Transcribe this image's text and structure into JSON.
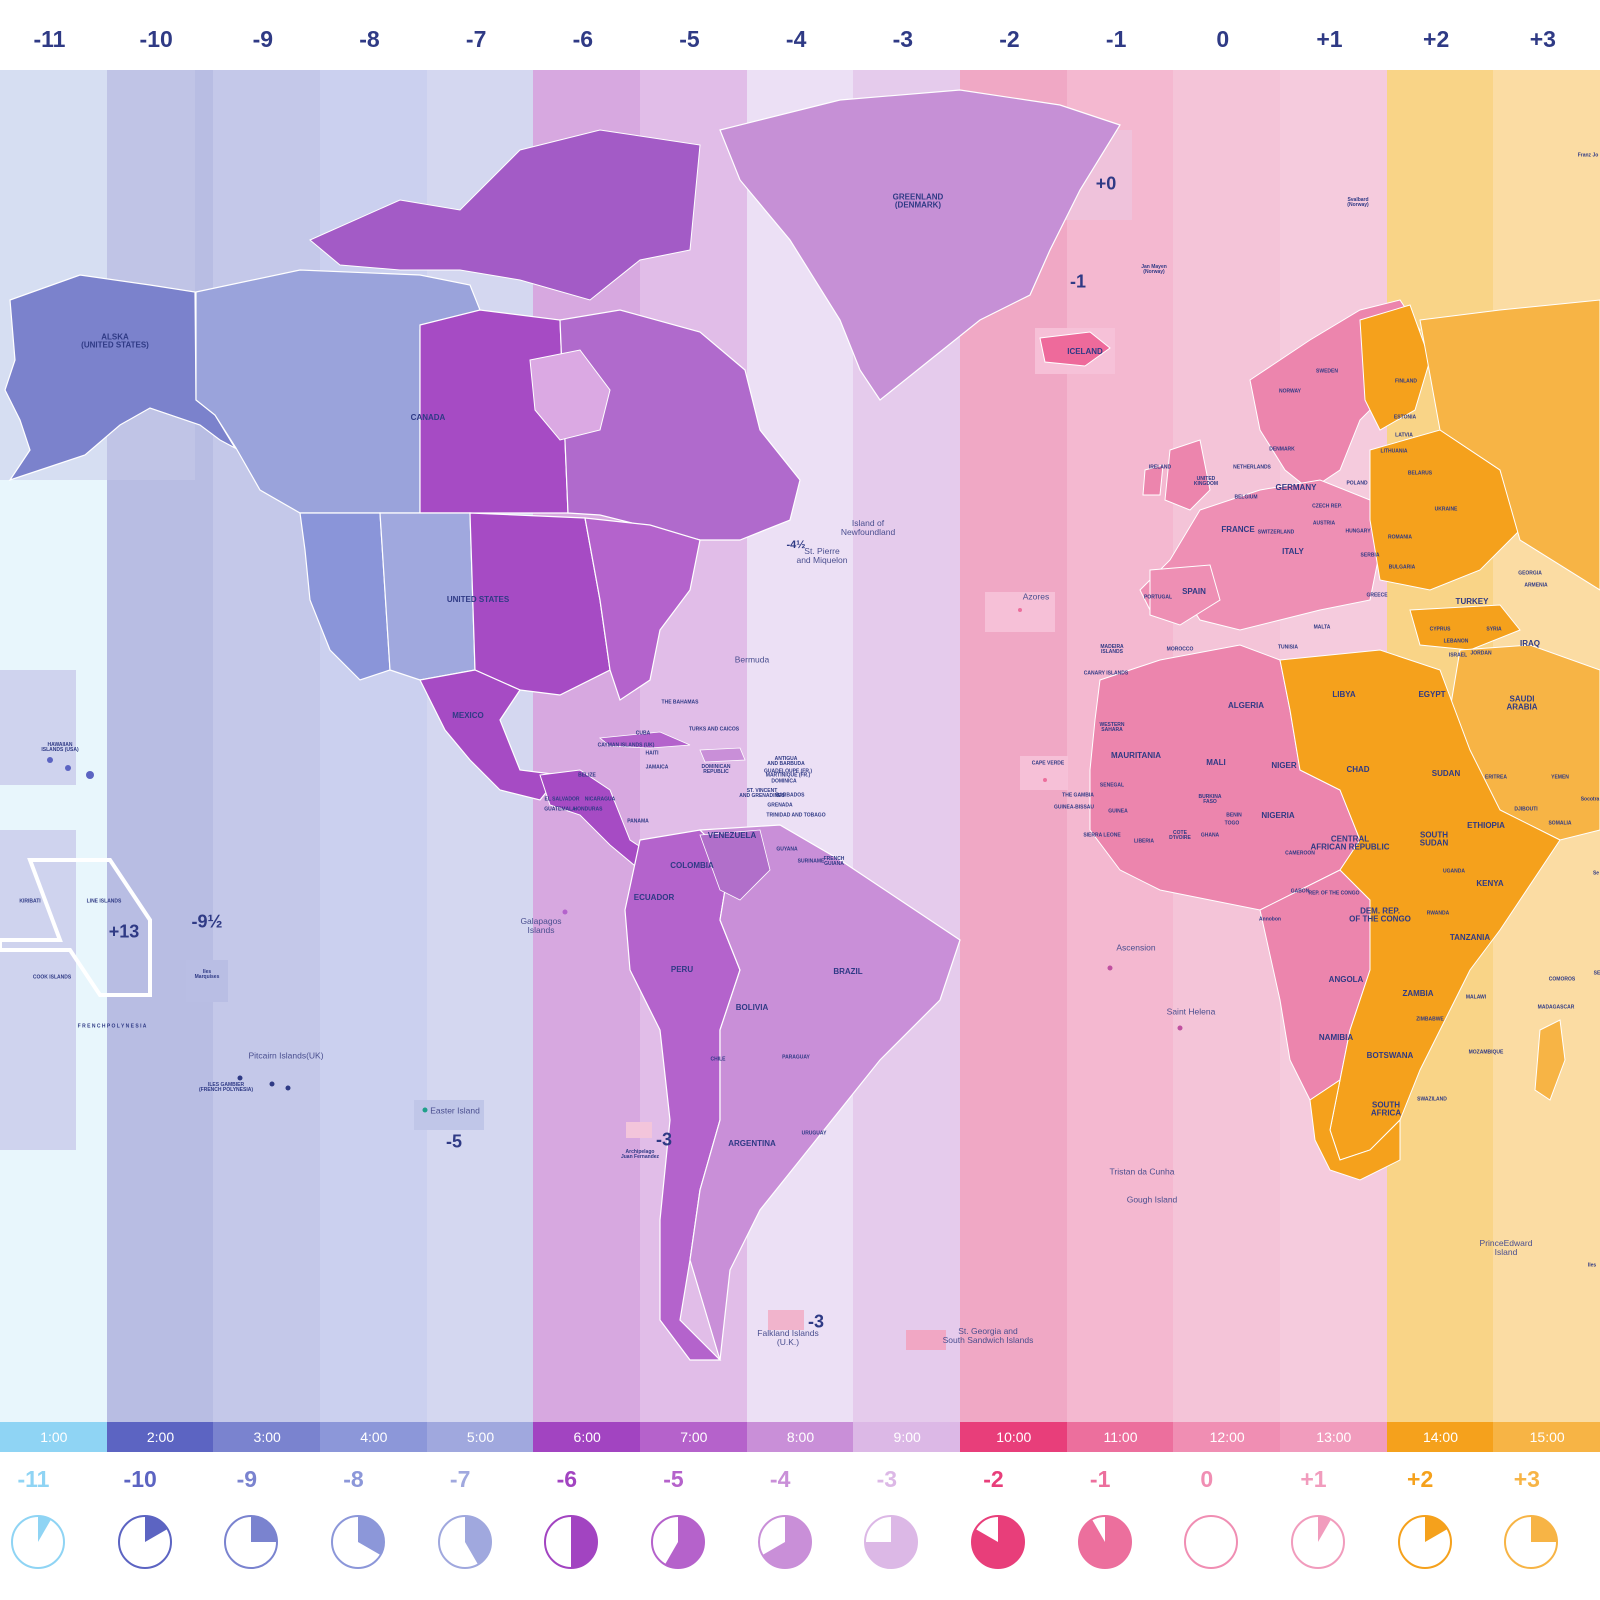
{
  "top_offsets": [
    "-11",
    "-10",
    "-9",
    "-8",
    "-7",
    "-6",
    "-5",
    "-4",
    "-3",
    "-2",
    "-1",
    "0",
    "+1",
    "+2",
    "+3"
  ],
  "bands": [
    {
      "color": "#e8f6fc"
    },
    {
      "color": "#b8bde3"
    },
    {
      "color": "#c4c8e9"
    },
    {
      "color": "#cbd0ef"
    },
    {
      "color": "#d4d7f0"
    },
    {
      "color": "#d7a8e0"
    },
    {
      "color": "#e1bde8"
    },
    {
      "color": "#ece0f5"
    },
    {
      "color": "#e5cbec"
    },
    {
      "color": "#f0a8c5"
    },
    {
      "color": "#f4b8d0"
    },
    {
      "color": "#f4c4d8"
    },
    {
      "color": "#f5cbdd"
    },
    {
      "color": "#f9d487"
    },
    {
      "color": "#fbdca3"
    }
  ],
  "time_bar": [
    {
      "label": "1:00",
      "color": "#8fd4f4"
    },
    {
      "label": "2:00",
      "color": "#5c64c2"
    },
    {
      "label": "3:00",
      "color": "#7a83cf"
    },
    {
      "label": "4:00",
      "color": "#8c97d9"
    },
    {
      "label": "5:00",
      "color": "#a0a8de"
    },
    {
      "label": "6:00",
      "color": "#a244c1"
    },
    {
      "label": "7:00",
      "color": "#b562cb"
    },
    {
      "label": "8:00",
      "color": "#c98fd8"
    },
    {
      "label": "9:00",
      "color": "#dcb8e6"
    },
    {
      "label": "10:00",
      "color": "#e83e7a"
    },
    {
      "label": "11:00",
      "color": "#ec6f9d"
    },
    {
      "label": "12:00",
      "color": "#f08eb3"
    },
    {
      "label": "13:00",
      "color": "#f19cbd"
    },
    {
      "label": "14:00",
      "color": "#f5a11c"
    },
    {
      "label": "15:00",
      "color": "#f7b445"
    }
  ],
  "bottom_offsets": [
    {
      "label": "-11",
      "color": "#8fd4f4"
    },
    {
      "label": "-10",
      "color": "#5c64c2"
    },
    {
      "label": "-9",
      "color": "#7a83cf"
    },
    {
      "label": "-8",
      "color": "#8c97d9"
    },
    {
      "label": "-7",
      "color": "#a0a8de"
    },
    {
      "label": "-6",
      "color": "#a244c1"
    },
    {
      "label": "-5",
      "color": "#b562cb"
    },
    {
      "label": "-4",
      "color": "#c98fd8"
    },
    {
      "label": "-3",
      "color": "#dcb8e6"
    },
    {
      "label": "-2",
      "color": "#e83e7a"
    },
    {
      "label": "-1",
      "color": "#ec6f9d"
    },
    {
      "label": "0",
      "color": "#f08eb3"
    },
    {
      "label": "+1",
      "color": "#f19cbd"
    },
    {
      "label": "+2",
      "color": "#f5a11c"
    },
    {
      "label": "+3",
      "color": "#f7b445"
    }
  ],
  "clocks": [
    {
      "hours": 1,
      "color": "#8fd4f4"
    },
    {
      "hours": 2,
      "color": "#5c64c2"
    },
    {
      "hours": 3,
      "color": "#7a83cf"
    },
    {
      "hours": 4,
      "color": "#8c97d9"
    },
    {
      "hours": 5,
      "color": "#a0a8de"
    },
    {
      "hours": 6,
      "color": "#a244c1"
    },
    {
      "hours": 7,
      "color": "#b562cb"
    },
    {
      "hours": 8,
      "color": "#c98fd8"
    },
    {
      "hours": 9,
      "color": "#dcb8e6"
    },
    {
      "hours": 10,
      "color": "#e83e7a"
    },
    {
      "hours": 11,
      "color": "#ec6f9d"
    },
    {
      "hours": 12,
      "color": "#f08eb3"
    },
    {
      "hours": 1,
      "color": "#f19cbd"
    },
    {
      "hours": 2,
      "color": "#f5a11c"
    },
    {
      "hours": 3,
      "color": "#f7b445"
    }
  ],
  "labels": {
    "alaska": "ALSKA\n(UNITED STATES)",
    "canada": "CANADA",
    "greenland": "GREENLAND\n(DENMARK)",
    "united_states": "UNITED STATES",
    "mexico": "MEXICO",
    "iceland": "ICELAND",
    "hawaii": "HAWAIIAN\nISLANDS (USA)",
    "kiribati": "KIRIBATI",
    "line_islands": "LINE ISLANDS",
    "cook_islands": "COOK ISLANDS",
    "french_polynesia": "F R E N C H   P O L Y N E S I A",
    "marquesas": "Iles\nMarquises",
    "pitcairn": "Pitcairn Islands(UK)",
    "gambier": "ILES GAMBIER\n(FRENCH POLYNESIA)",
    "easter_island": "Easter Island",
    "galapagos": "Galapagos\nIslands",
    "juan_fernandez": "Archipelago\nJuan Fernandez",
    "falkland": "Falkland Islands\n(U.K.)",
    "south_georgia": "St. Georgia and\nSouth Sandwich Islands",
    "newfoundland": "Island of\nNewfoundland",
    "st_pierre": "St. Pierre\nand Miquelon",
    "bermuda": "Bermuda",
    "azores": "Azores",
    "madeira": "MADEIRA\nISLANDS",
    "canary": "CANARY ISLANDS",
    "cape_verde": "CAPE VERDE",
    "ascension": "Ascension",
    "saint_helena": "Saint Helena",
    "tristan": "Tristan da Cunha",
    "gough": "Gough Island",
    "prince_edward": "PrinceEdward\nIsland",
    "svalbard": "Svalbard\n(Norway)",
    "franz_josef": "Franz Jo",
    "colombia": "COLOMBIA",
    "venezuela": "VENEZUELA",
    "ecuador": "ECUADOR",
    "peru": "PERU",
    "brazil": "BRAZIL",
    "bolivia": "BOLIVIA",
    "paraguay": "PARAGUAY",
    "chile": "CHILE",
    "argentina": "ARGENTINA",
    "uruguay": "URUGUAY",
    "panama": "PANAMA",
    "guyana": "GUYANA",
    "suriname": "SURINAME",
    "french_guiana": "FRENCH\nGUIANA",
    "cuba": "CUBA",
    "bahamas": "THE BAHAMAS",
    "jamaica": "JAMAICA",
    "haiti": "HAITI",
    "dominican": "DOMINICAN\nREPUBLIC",
    "belize": "BELIZE",
    "honduras": "HONDURAS",
    "guatemala": "GUATEMALA",
    "el_salvador": "EL SALVADOR",
    "nicaragua": "NICARAGUA",
    "cayman": "CAYMAN ISLANDS (UK)",
    "turks": "TURKS AND CAICOS",
    "grenada": "GRENADA",
    "trinidad": "TRINIDAD AND TOBAGO",
    "barbados": "BARBADOS",
    "martinique": "MARTINIQUE (FR.)",
    "dominica": "DOMINICA",
    "guadeloupe": "GUADELOUPE (FR.)",
    "antigua": "ANTIGUA\nAND BARBUDA",
    "st_vincent": "ST. VINCENT\nAND GRENADINES",
    "norway": "NORWAY",
    "sweden": "SWEDEN",
    "finland": "FINLAND",
    "united_kingdom": "UNITED\nKINGDOM",
    "ireland": "IRELAND",
    "france": "FRANCE",
    "spain": "SPAIN",
    "portugal": "PORTUGAL",
    "germany": "GERMANY",
    "poland": "POLAND",
    "italy": "ITALY",
    "belarus": "BELARUS",
    "ukraine": "UKRAINE",
    "romania": "ROMANIA",
    "estonia": "ESTONIA",
    "latvia": "LATVIA",
    "lithuania": "LITHUANIA",
    "czech": "CZECH REP.",
    "austria": "AUSTRIA",
    "hungary": "HUNGARY",
    "switzerland": "SWITZERLAND",
    "belgium": "BELGIUM",
    "netherlands": "NETHERLANDS",
    "denmark": "DENMARK",
    "serbia": "SERBIA",
    "bulgaria": "BULGARIA",
    "greece": "GREECE",
    "malta": "MALTA",
    "turkey": "TURKEY",
    "georgia": "GEORGIA",
    "armenia": "ARMENIA",
    "cyprus": "CYPRUS",
    "lebanon": "LEBANON",
    "israel": "ISRAEL",
    "jordan": "JORDAN",
    "syria": "SYRIA",
    "iraq": "IRAQ",
    "saudi_arabia": "SAUDI\nARABIA",
    "yemen": "YEMEN",
    "socotra": "Socotra",
    "morocco": "MOROCCO",
    "tunisia": "TUNISIA",
    "algeria": "ALGERIA",
    "libya": "LIBYA",
    "egypt": "EGYPT",
    "western_sahara": "WESTERN\nSAHARA",
    "mauritania": "MAURITANIA",
    "mali": "MALI",
    "niger": "NIGER",
    "chad": "CHAD",
    "sudan": "SUDAN",
    "eritrea": "ERITREA",
    "djibouti": "DJIBOUTI",
    "ethiopia": "ETHIOPIA",
    "somalia": "SOMALIA",
    "senegal": "SENEGAL",
    "gambia": "THE GAMBIA",
    "guinea_bissau": "GUINEA-BISSAU",
    "guinea": "GUINEA",
    "sierra_leone": "SIERRA LEONE",
    "liberia": "LIBERIA",
    "cote_divoire": "COTE\nD'IVOIRE",
    "burkina": "BURKINA\nFASO",
    "ghana": "GHANA",
    "togo": "TOGO",
    "benin": "BENIN",
    "nigeria": "NIGERIA",
    "cameroon": "CAMEROON",
    "car": "CENTRAL\nAFRICAN REPUBLIC",
    "south_sudan": "SOUTH\nSUDAN",
    "uganda": "UGANDA",
    "kenya": "KENYA",
    "rwanda": "RWANDA",
    "gabon": "GABON",
    "congo": "REP. OF THE CONGO",
    "drc": "DEM. REP.\nOF THE CONGO",
    "tanzania": "TANZANIA",
    "angola": "ANGOLA",
    "zambia": "ZAMBIA",
    "malawi": "MALAWI",
    "zimbabwe": "ZIMBABWE",
    "mozambique": "MOZAMBIQUE",
    "namibia": "NAMIBIA",
    "botswana": "BOTSWANA",
    "swaziland": "SWAZILAND",
    "south_africa": "SOUTH\nAFRICA",
    "comoros": "COMOROS",
    "madagascar": "MADAGASCAR",
    "djibouti2": "DJIBOUTI",
    "seychelles_cut": "Se",
    "iles_cut": "Iles",
    "jan_mayen": "Jan Mayen\n(Norway)",
    "annobon": "Annobon",
    "se_cut": "SE"
  },
  "offset_labels": {
    "plus13": "+13",
    "minus9half": "-9½",
    "minus5_easter": "-5",
    "minus3_juan": "-3",
    "minus3_falkland": "-3",
    "plus0_greenland": "+0",
    "minus1_greenland": "-1",
    "minus4half": "-4½"
  }
}
